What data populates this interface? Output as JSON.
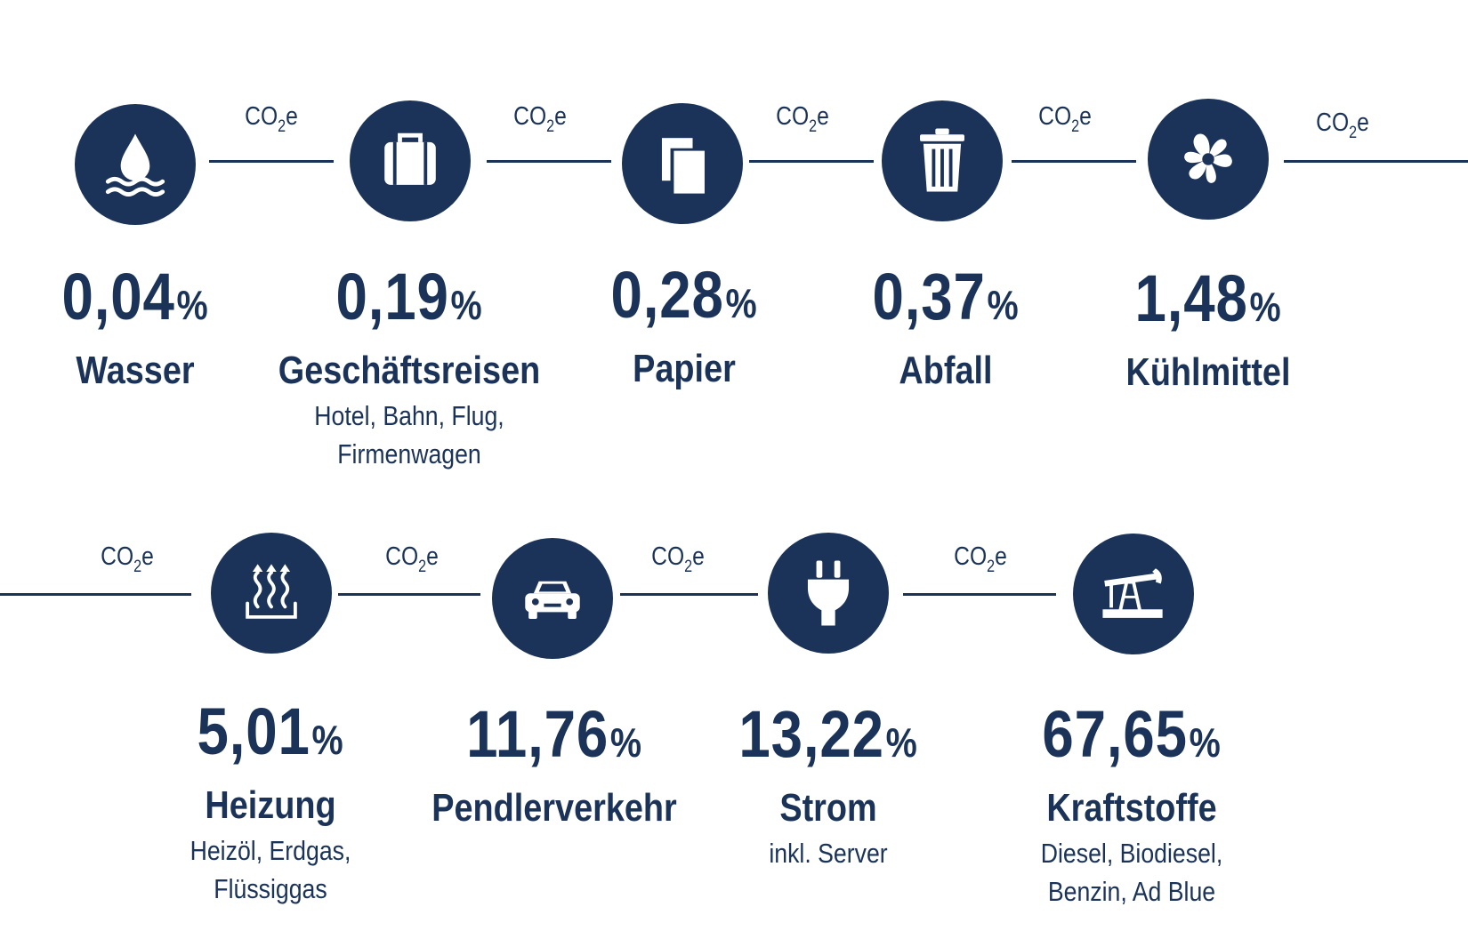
{
  "connector_label": {
    "base": "CO",
    "sub": "2",
    "suffix": "e"
  },
  "unit": "%",
  "colors": {
    "primary": "#1b3358",
    "background": "#ffffff"
  },
  "categories": [
    {
      "value": "0,04",
      "name": "Wasser",
      "details": [],
      "icon": "water-drop-icon"
    },
    {
      "value": "0,19",
      "name": "Geschäftsreisen",
      "details": [
        "Hotel, Bahn, Flug,",
        "Firmenwagen"
      ],
      "icon": "suitcase-icon"
    },
    {
      "value": "0,28",
      "name": "Papier",
      "details": [],
      "icon": "paper-icon"
    },
    {
      "value": "0,37",
      "name": "Abfall",
      "details": [],
      "icon": "trash-icon"
    },
    {
      "value": "1,48",
      "name": "Kühlmittel",
      "details": [],
      "icon": "fan-icon"
    },
    {
      "value": "5,01",
      "name": "Heizung",
      "details": [
        "Heizöl, Erdgas,",
        "Flüssiggas"
      ],
      "icon": "heating-icon"
    },
    {
      "value": "11,76",
      "name": "Pendlerverkehr",
      "details": [],
      "icon": "car-icon"
    },
    {
      "value": "13,22",
      "name": "Strom",
      "details": [
        "inkl. Server"
      ],
      "icon": "plug-icon"
    },
    {
      "value": "67,65",
      "name": "Kraftstoffe",
      "details": [
        "Diesel, Biodiesel,",
        "Benzin, Ad Blue"
      ],
      "icon": "oil-pump-icon"
    }
  ]
}
